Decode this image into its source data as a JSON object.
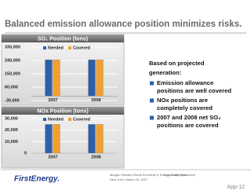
{
  "slide": {
    "title": "Balanced emission allowance position minimizes risks.",
    "intro": [
      "Based on projected",
      "generation:"
    ],
    "bullets": [
      [
        "Emission allowance",
        "positions are well covered"
      ],
      [
        "NOx positions are",
        "completely covered"
      ],
      [
        "2007 and 2008 net SO₂",
        "positions are covered"
      ]
    ],
    "footer": {
      "logo": "FirstEnergy.",
      "event": "Morgan Stanley Global Electricity & Energy Conference",
      "place": "New York • March 15, 2007",
      "section": "Commodity Operations",
      "page": "App-12"
    }
  },
  "chart_data": [
    {
      "type": "bar",
      "title": "SO₂ Position (tons)",
      "categories": [
        "2007",
        "2008"
      ],
      "series": [
        {
          "name": "Needed",
          "color": "#2e5fa8",
          "values": [
            245000,
            245000
          ]
        },
        {
          "name": "Covered",
          "color": "#f0a030",
          "values": [
            245000,
            245000
          ]
        }
      ],
      "ylim": [
        -30000,
        330000
      ],
      "yticks": [
        {
          "value": 330000,
          "label": "330,000"
        },
        {
          "value": 240000,
          "label": "240,000"
        },
        {
          "value": 150000,
          "label": "150,000"
        },
        {
          "value": 60000,
          "label": "60,000"
        },
        {
          "value": -30000,
          "label": "-30,000"
        }
      ],
      "grid": true
    },
    {
      "type": "bar",
      "title": "NOx Position (tons)",
      "categories": [
        "2007",
        "2008"
      ],
      "series": [
        {
          "name": "Needed",
          "color": "#2e5fa8",
          "values": [
            25000,
            25000
          ]
        },
        {
          "name": "Covered",
          "color": "#f0a030",
          "values": [
            25000,
            25000
          ]
        }
      ],
      "ylim": [
        0,
        30000
      ],
      "yticks": [
        {
          "value": 30000,
          "label": "30,000"
        },
        {
          "value": 20000,
          "label": "20,000"
        },
        {
          "value": 10000,
          "label": "10,000"
        },
        0
      ],
      "grid": true
    }
  ]
}
